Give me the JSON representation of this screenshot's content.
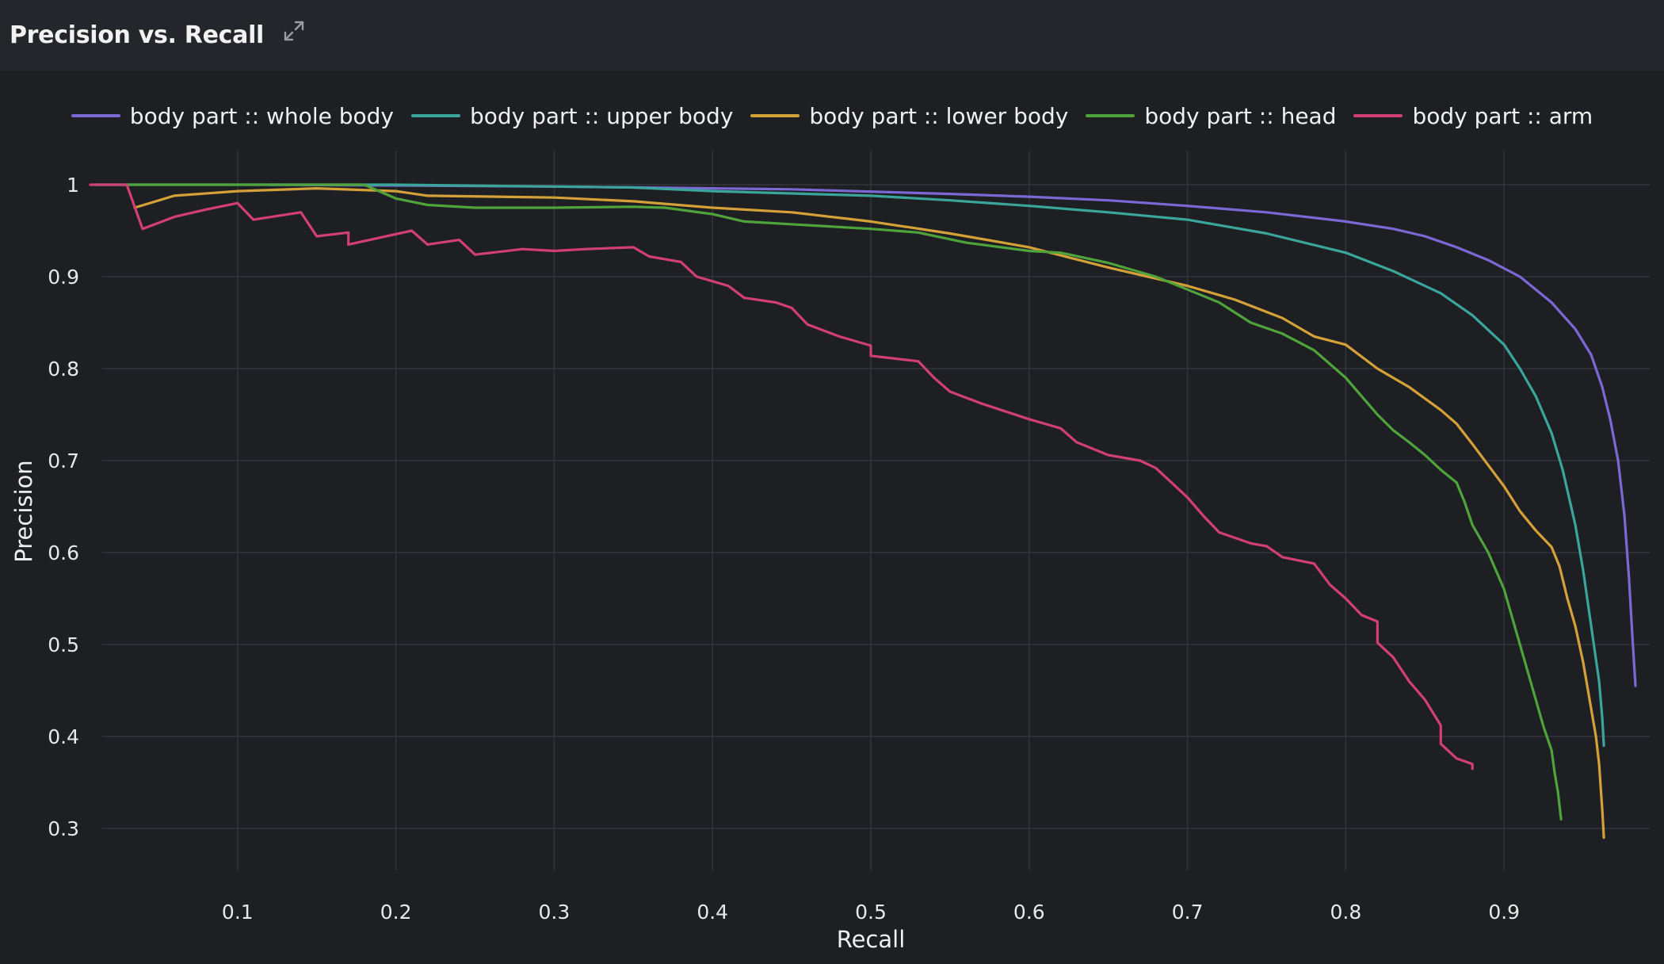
{
  "header": {
    "title": "Precision vs. Recall",
    "expand_icon": "expand-icon"
  },
  "chart_data": {
    "type": "line",
    "title": "Precision vs. Recall",
    "xlabel": "Recall",
    "ylabel": "Precision",
    "xlim": [
      0.007,
      0.986
    ],
    "ylim": [
      0.255,
      1.04
    ],
    "xticks": [
      {
        "value": 0.1,
        "label": "0.1"
      },
      {
        "value": 0.2,
        "label": "0.2"
      },
      {
        "value": 0.3,
        "label": "0.3"
      },
      {
        "value": 0.4,
        "label": "0.4"
      },
      {
        "value": 0.5,
        "label": "0.5"
      },
      {
        "value": 0.6,
        "label": "0.6"
      },
      {
        "value": 0.7,
        "label": "0.7"
      },
      {
        "value": 0.8,
        "label": "0.8"
      },
      {
        "value": 0.9,
        "label": "0.9"
      }
    ],
    "yticks": [
      {
        "value": 0.3,
        "label": "0.3"
      },
      {
        "value": 0.4,
        "label": "0.4"
      },
      {
        "value": 0.5,
        "label": "0.5"
      },
      {
        "value": 0.6,
        "label": "0.6"
      },
      {
        "value": 0.7,
        "label": "0.7"
      },
      {
        "value": 0.8,
        "label": "0.8"
      },
      {
        "value": 0.9,
        "label": "0.9"
      },
      {
        "value": 1,
        "label": "1"
      }
    ],
    "grid": true,
    "legend_position": "top-center",
    "series": [
      {
        "name": "body part :: whole body",
        "color": "#7b68d4",
        "points": [
          [
            0.12,
            1.0
          ],
          [
            0.3,
            0.998
          ],
          [
            0.45,
            0.995
          ],
          [
            0.55,
            0.99
          ],
          [
            0.6,
            0.987
          ],
          [
            0.65,
            0.983
          ],
          [
            0.7,
            0.977
          ],
          [
            0.75,
            0.97
          ],
          [
            0.8,
            0.96
          ],
          [
            0.83,
            0.952
          ],
          [
            0.85,
            0.944
          ],
          [
            0.87,
            0.932
          ],
          [
            0.89,
            0.918
          ],
          [
            0.91,
            0.9
          ],
          [
            0.93,
            0.872
          ],
          [
            0.945,
            0.843
          ],
          [
            0.955,
            0.815
          ],
          [
            0.962,
            0.78
          ],
          [
            0.967,
            0.745
          ],
          [
            0.972,
            0.7
          ],
          [
            0.976,
            0.64
          ],
          [
            0.979,
            0.57
          ],
          [
            0.981,
            0.51
          ],
          [
            0.983,
            0.455
          ]
        ]
      },
      {
        "name": "body part :: upper body",
        "color": "#3aa59a",
        "points": [
          [
            0.01,
            1.0
          ],
          [
            0.2,
            1.0
          ],
          [
            0.35,
            0.997
          ],
          [
            0.4,
            0.993
          ],
          [
            0.5,
            0.988
          ],
          [
            0.55,
            0.983
          ],
          [
            0.6,
            0.977
          ],
          [
            0.65,
            0.97
          ],
          [
            0.7,
            0.962
          ],
          [
            0.75,
            0.947
          ],
          [
            0.8,
            0.926
          ],
          [
            0.83,
            0.906
          ],
          [
            0.86,
            0.882
          ],
          [
            0.88,
            0.858
          ],
          [
            0.9,
            0.826
          ],
          [
            0.91,
            0.8
          ],
          [
            0.92,
            0.77
          ],
          [
            0.93,
            0.73
          ],
          [
            0.937,
            0.69
          ],
          [
            0.945,
            0.63
          ],
          [
            0.95,
            0.58
          ],
          [
            0.955,
            0.52
          ],
          [
            0.96,
            0.46
          ],
          [
            0.962,
            0.42
          ],
          [
            0.963,
            0.39
          ]
        ]
      },
      {
        "name": "body part :: lower body",
        "color": "#d4a038",
        "points": [
          [
            0.035,
            0.975
          ],
          [
            0.06,
            0.988
          ],
          [
            0.1,
            0.993
          ],
          [
            0.15,
            0.996
          ],
          [
            0.2,
            0.993
          ],
          [
            0.22,
            0.988
          ],
          [
            0.3,
            0.986
          ],
          [
            0.35,
            0.982
          ],
          [
            0.4,
            0.975
          ],
          [
            0.45,
            0.97
          ],
          [
            0.5,
            0.96
          ],
          [
            0.55,
            0.947
          ],
          [
            0.6,
            0.932
          ],
          [
            0.65,
            0.91
          ],
          [
            0.7,
            0.89
          ],
          [
            0.73,
            0.875
          ],
          [
            0.76,
            0.855
          ],
          [
            0.78,
            0.835
          ],
          [
            0.8,
            0.826
          ],
          [
            0.82,
            0.8
          ],
          [
            0.84,
            0.78
          ],
          [
            0.86,
            0.755
          ],
          [
            0.87,
            0.74
          ],
          [
            0.88,
            0.718
          ],
          [
            0.89,
            0.695
          ],
          [
            0.9,
            0.672
          ],
          [
            0.91,
            0.645
          ],
          [
            0.92,
            0.624
          ],
          [
            0.93,
            0.606
          ],
          [
            0.935,
            0.585
          ],
          [
            0.94,
            0.55
          ],
          [
            0.945,
            0.52
          ],
          [
            0.95,
            0.48
          ],
          [
            0.955,
            0.43
          ],
          [
            0.958,
            0.4
          ],
          [
            0.96,
            0.37
          ],
          [
            0.962,
            0.32
          ],
          [
            0.963,
            0.29
          ]
        ]
      },
      {
        "name": "body part :: head",
        "color": "#4ea33a",
        "points": [
          [
            0.01,
            1.0
          ],
          [
            0.18,
            1.0
          ],
          [
            0.2,
            0.985
          ],
          [
            0.22,
            0.978
          ],
          [
            0.25,
            0.975
          ],
          [
            0.3,
            0.975
          ],
          [
            0.35,
            0.976
          ],
          [
            0.37,
            0.975
          ],
          [
            0.4,
            0.968
          ],
          [
            0.42,
            0.96
          ],
          [
            0.5,
            0.952
          ],
          [
            0.53,
            0.948
          ],
          [
            0.56,
            0.937
          ],
          [
            0.6,
            0.928
          ],
          [
            0.62,
            0.926
          ],
          [
            0.65,
            0.915
          ],
          [
            0.68,
            0.9
          ],
          [
            0.7,
            0.886
          ],
          [
            0.72,
            0.872
          ],
          [
            0.74,
            0.85
          ],
          [
            0.76,
            0.838
          ],
          [
            0.78,
            0.82
          ],
          [
            0.8,
            0.79
          ],
          [
            0.81,
            0.77
          ],
          [
            0.82,
            0.75
          ],
          [
            0.83,
            0.733
          ],
          [
            0.84,
            0.72
          ],
          [
            0.85,
            0.706
          ],
          [
            0.86,
            0.69
          ],
          [
            0.87,
            0.676
          ],
          [
            0.875,
            0.655
          ],
          [
            0.88,
            0.63
          ],
          [
            0.89,
            0.6
          ],
          [
            0.9,
            0.56
          ],
          [
            0.905,
            0.53
          ],
          [
            0.91,
            0.5
          ],
          [
            0.915,
            0.47
          ],
          [
            0.92,
            0.44
          ],
          [
            0.925,
            0.41
          ],
          [
            0.93,
            0.385
          ],
          [
            0.932,
            0.36
          ],
          [
            0.934,
            0.34
          ],
          [
            0.936,
            0.31
          ]
        ]
      },
      {
        "name": "body part :: arm",
        "color": "#d23f73",
        "points": [
          [
            0.007,
            1.0
          ],
          [
            0.03,
            1.0
          ],
          [
            0.04,
            0.952
          ],
          [
            0.06,
            0.965
          ],
          [
            0.08,
            0.973
          ],
          [
            0.1,
            0.98
          ],
          [
            0.11,
            0.962
          ],
          [
            0.14,
            0.97
          ],
          [
            0.15,
            0.944
          ],
          [
            0.17,
            0.948
          ],
          [
            0.17,
            0.935
          ],
          [
            0.21,
            0.95
          ],
          [
            0.22,
            0.935
          ],
          [
            0.24,
            0.94
          ],
          [
            0.25,
            0.924
          ],
          [
            0.28,
            0.93
          ],
          [
            0.3,
            0.928
          ],
          [
            0.32,
            0.93
          ],
          [
            0.35,
            0.932
          ],
          [
            0.36,
            0.922
          ],
          [
            0.38,
            0.916
          ],
          [
            0.39,
            0.9
          ],
          [
            0.41,
            0.89
          ],
          [
            0.42,
            0.877
          ],
          [
            0.44,
            0.872
          ],
          [
            0.45,
            0.866
          ],
          [
            0.46,
            0.848
          ],
          [
            0.48,
            0.835
          ],
          [
            0.5,
            0.825
          ],
          [
            0.5,
            0.814
          ],
          [
            0.53,
            0.808
          ],
          [
            0.54,
            0.79
          ],
          [
            0.55,
            0.775
          ],
          [
            0.57,
            0.762
          ],
          [
            0.6,
            0.745
          ],
          [
            0.62,
            0.735
          ],
          [
            0.63,
            0.72
          ],
          [
            0.65,
            0.706
          ],
          [
            0.67,
            0.7
          ],
          [
            0.68,
            0.692
          ],
          [
            0.69,
            0.676
          ],
          [
            0.7,
            0.66
          ],
          [
            0.71,
            0.64
          ],
          [
            0.72,
            0.622
          ],
          [
            0.74,
            0.61
          ],
          [
            0.75,
            0.607
          ],
          [
            0.76,
            0.595
          ],
          [
            0.78,
            0.588
          ],
          [
            0.79,
            0.565
          ],
          [
            0.8,
            0.55
          ],
          [
            0.81,
            0.532
          ],
          [
            0.82,
            0.525
          ],
          [
            0.82,
            0.502
          ],
          [
            0.83,
            0.486
          ],
          [
            0.84,
            0.46
          ],
          [
            0.85,
            0.44
          ],
          [
            0.86,
            0.412
          ],
          [
            0.86,
            0.392
          ],
          [
            0.87,
            0.376
          ],
          [
            0.88,
            0.37
          ],
          [
            0.88,
            0.365
          ]
        ]
      }
    ]
  }
}
